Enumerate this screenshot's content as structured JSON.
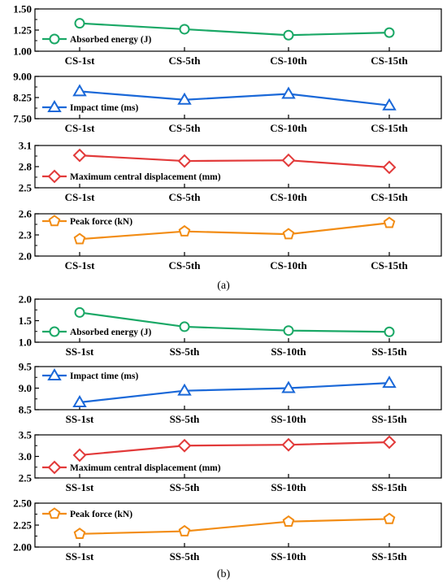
{
  "colors": {
    "green": "#1aa866",
    "blue": "#1a68d8",
    "red": "#e23a3a",
    "orange": "#f28c14",
    "axis": "#000000"
  },
  "chart_data": [
    {
      "type": "line",
      "group": "(a)",
      "categories": [
        "CS-1st",
        "CS-5th",
        "CS-10th",
        "CS-15th"
      ],
      "series": [
        {
          "name": "Absorbed energy (J)",
          "values": [
            1.33,
            1.26,
            1.19,
            1.22
          ],
          "color": "#1aa866",
          "marker": "circle"
        }
      ],
      "ylim": [
        1.0,
        1.5
      ],
      "yticks": [
        "1.00",
        "1.25",
        "1.50"
      ],
      "legend": "left"
    },
    {
      "type": "line",
      "group": "(a)",
      "categories": [
        "CS-1st",
        "CS-5th",
        "CS-10th",
        "CS-15th"
      ],
      "series": [
        {
          "name": "Impact time (ms)",
          "values": [
            8.47,
            8.17,
            8.38,
            7.97
          ],
          "color": "#1a68d8",
          "marker": "triangle"
        }
      ],
      "ylim": [
        7.5,
        9.0
      ],
      "yticks": [
        "7.50",
        "8.25",
        "9.00"
      ],
      "legend": "left"
    },
    {
      "type": "line",
      "group": "(a)",
      "categories": [
        "CS-1st",
        "CS-5th",
        "CS-10th",
        "CS-15th"
      ],
      "series": [
        {
          "name": "Maximum central displacement (mm)",
          "values": [
            2.96,
            2.88,
            2.89,
            2.79
          ],
          "color": "#e23a3a",
          "marker": "diamond"
        }
      ],
      "ylim": [
        2.5,
        3.1
      ],
      "yticks": [
        "2.5",
        "2.8",
        "3.1"
      ],
      "legend": "left"
    },
    {
      "type": "line",
      "group": "(a)",
      "categories": [
        "CS-1st",
        "CS-5th",
        "CS-10th",
        "CS-15th"
      ],
      "series": [
        {
          "name": "Peak force (kN)",
          "values": [
            2.24,
            2.35,
            2.31,
            2.47
          ],
          "color": "#f28c14",
          "marker": "pentagon"
        }
      ],
      "ylim": [
        2.0,
        2.6
      ],
      "yticks": [
        "2.0",
        "2.3",
        "2.6"
      ],
      "legend": "top-left"
    },
    {
      "type": "line",
      "group": "(b)",
      "categories": [
        "SS-1st",
        "SS-5th",
        "SS-10th",
        "SS-15th"
      ],
      "series": [
        {
          "name": "Absorbed energy (J)",
          "values": [
            1.69,
            1.36,
            1.27,
            1.24
          ],
          "color": "#1aa866",
          "marker": "circle"
        }
      ],
      "ylim": [
        1.0,
        2.0
      ],
      "yticks": [
        "1.0",
        "1.5",
        "2.0"
      ],
      "legend": "left"
    },
    {
      "type": "line",
      "group": "(b)",
      "categories": [
        "SS-1st",
        "SS-5th",
        "SS-10th",
        "SS-15th"
      ],
      "series": [
        {
          "name": "Impact time (ms)",
          "values": [
            8.67,
            8.94,
            9.0,
            9.12
          ],
          "color": "#1a68d8",
          "marker": "triangle"
        }
      ],
      "ylim": [
        8.5,
        9.5
      ],
      "yticks": [
        "8.5",
        "9.0",
        "9.5"
      ],
      "legend": "top-left"
    },
    {
      "type": "line",
      "group": "(b)",
      "categories": [
        "SS-1st",
        "SS-5th",
        "SS-10th",
        "SS-15th"
      ],
      "series": [
        {
          "name": "Maximum central displacement (mm)",
          "values": [
            3.03,
            3.25,
            3.27,
            3.33
          ],
          "color": "#e23a3a",
          "marker": "diamond"
        }
      ],
      "ylim": [
        2.5,
        3.5
      ],
      "yticks": [
        "2.5",
        "3.0",
        "3.5"
      ],
      "legend": "left"
    },
    {
      "type": "line",
      "group": "(b)",
      "categories": [
        "SS-1st",
        "SS-5th",
        "SS-10th",
        "SS-15th"
      ],
      "series": [
        {
          "name": "Peak force (kN)",
          "values": [
            2.15,
            2.18,
            2.29,
            2.32
          ],
          "color": "#f28c14",
          "marker": "pentagon"
        }
      ],
      "ylim": [
        2.0,
        2.5
      ],
      "yticks": [
        "2.00",
        "2.25",
        "2.50"
      ],
      "legend": "top-left"
    }
  ],
  "captions": {
    "a": "(a)",
    "b": "(b)"
  }
}
